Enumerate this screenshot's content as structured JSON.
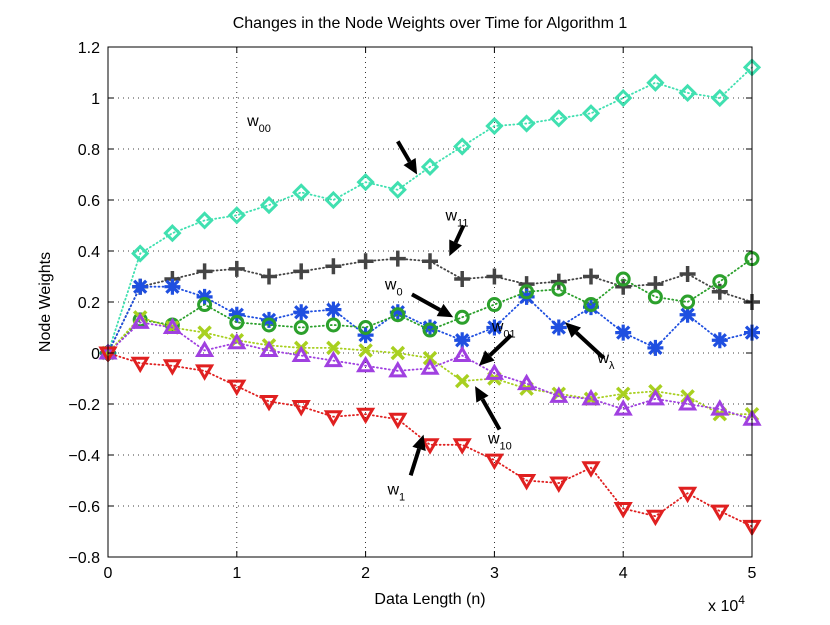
{
  "chart_data": {
    "type": "line",
    "title": "Changes in the Node Weights over Time for Algorithm 1",
    "xlabel": "Data Length (n)",
    "ylabel": "Node Weights",
    "x_multiplier_label": "x 10",
    "x_multiplier_exp": "4",
    "xlim": [
      0,
      5
    ],
    "ylim": [
      -0.8,
      1.2
    ],
    "xticks": [
      "0",
      "1",
      "2",
      "3",
      "4",
      "5"
    ],
    "yticks": [
      "1.2",
      "1",
      "0.8",
      "0.6",
      "0.4",
      "0.2",
      "0",
      "−0.2",
      "−0.4",
      "−0.6",
      "−0.8"
    ],
    "grid": true,
    "x": [
      0,
      0.25,
      0.5,
      0.75,
      1.0,
      1.25,
      1.5,
      1.75,
      2.0,
      2.25,
      2.5,
      2.75,
      3.0,
      3.25,
      3.5,
      3.75,
      4.0,
      4.25,
      4.5,
      4.75,
      5.0
    ],
    "series": [
      {
        "name": "w00",
        "marker": "diamond",
        "color": "#40e0b0",
        "values": [
          0,
          0.39,
          0.47,
          0.52,
          0.54,
          0.58,
          0.63,
          0.6,
          0.67,
          0.64,
          0.73,
          0.81,
          0.89,
          0.9,
          0.92,
          0.94,
          1.0,
          1.06,
          1.02,
          1.0,
          1.12
        ]
      },
      {
        "name": "w11",
        "marker": "plus",
        "color": "#444444",
        "values": [
          0,
          0.26,
          0.29,
          0.32,
          0.33,
          0.3,
          0.32,
          0.34,
          0.36,
          0.37,
          0.36,
          0.29,
          0.3,
          0.27,
          0.28,
          0.3,
          0.26,
          0.27,
          0.31,
          0.24,
          0.2
        ]
      },
      {
        "name": "w0",
        "marker": "star",
        "color": "#1f4fe0",
        "values": [
          0,
          0.26,
          0.26,
          0.22,
          0.15,
          0.13,
          0.16,
          0.17,
          0.07,
          0.16,
          0.1,
          0.05,
          0.1,
          0.22,
          0.1,
          0.18,
          0.08,
          0.02,
          0.15,
          0.05,
          0.08
        ]
      },
      {
        "name": "wλ",
        "marker": "circle",
        "color": "#2ca02c",
        "values": [
          0,
          0.13,
          0.11,
          0.19,
          0.12,
          0.11,
          0.1,
          0.11,
          0.1,
          0.15,
          0.09,
          0.14,
          0.19,
          0.24,
          0.25,
          0.19,
          0.29,
          0.22,
          0.2,
          0.28,
          0.37
        ]
      },
      {
        "name": "w10",
        "marker": "x",
        "color": "#a8d020",
        "values": [
          0,
          0.14,
          0.1,
          0.08,
          0.05,
          0.03,
          0.02,
          0.02,
          0.01,
          0.0,
          -0.02,
          -0.11,
          -0.1,
          -0.14,
          -0.16,
          -0.18,
          -0.16,
          -0.15,
          -0.17,
          -0.24,
          -0.24
        ]
      },
      {
        "name": "w01",
        "marker": "triangle-up",
        "color": "#a040e0",
        "values": [
          0,
          0.12,
          0.1,
          0.01,
          0.04,
          0.01,
          -0.01,
          -0.03,
          -0.05,
          -0.07,
          -0.06,
          -0.01,
          -0.08,
          -0.12,
          -0.17,
          -0.18,
          -0.22,
          -0.18,
          -0.2,
          -0.22,
          -0.26
        ]
      },
      {
        "name": "w1",
        "marker": "triangle-down",
        "color": "#e02020",
        "values": [
          0,
          -0.04,
          -0.05,
          -0.07,
          -0.13,
          -0.19,
          -0.21,
          -0.25,
          -0.24,
          -0.26,
          -0.36,
          -0.36,
          -0.42,
          -0.5,
          -0.51,
          -0.45,
          -0.61,
          -0.64,
          -0.55,
          -0.62,
          -0.68
        ]
      }
    ],
    "annotations": [
      {
        "main": "w",
        "sub": "00",
        "tx": 1.08,
        "ty": 0.89,
        "from": [
          2.25,
          0.83
        ],
        "to": [
          2.4,
          0.7
        ]
      },
      {
        "main": "w",
        "sub": "11",
        "tx": 2.62,
        "ty": 0.52,
        "from": [
          2.76,
          0.5
        ],
        "to": [
          2.65,
          0.38
        ]
      },
      {
        "main": "w",
        "sub": "0",
        "tx": 2.15,
        "ty": 0.25,
        "from": [
          2.36,
          0.23
        ],
        "to": [
          2.68,
          0.14
        ]
      },
      {
        "main": "w",
        "sub": "01",
        "tx": 2.98,
        "ty": 0.085,
        "from": [
          3.13,
          0.07
        ],
        "to": [
          2.88,
          -0.05
        ]
      },
      {
        "main": "w",
        "sub": "λ",
        "tx": 3.8,
        "ty": -0.04,
        "from": [
          3.85,
          -0.02
        ],
        "to": [
          3.55,
          0.12
        ]
      },
      {
        "main": "w",
        "sub": "10",
        "tx": 2.95,
        "ty": -0.355,
        "from": [
          3.04,
          -0.3
        ],
        "to": [
          2.85,
          -0.13
        ]
      },
      {
        "main": "w",
        "sub": "1",
        "tx": 2.17,
        "ty": -0.555,
        "from": [
          2.35,
          -0.48
        ],
        "to": [
          2.45,
          -0.32
        ]
      }
    ]
  }
}
